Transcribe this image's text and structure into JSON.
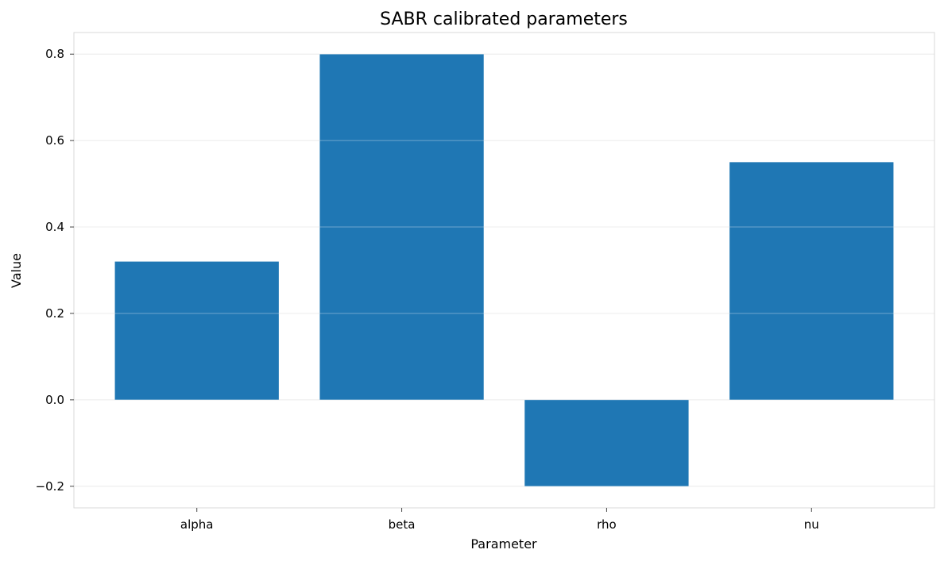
{
  "chart_data": {
    "type": "bar",
    "title": "SABR calibrated parameters",
    "xlabel": "Parameter",
    "ylabel": "Value",
    "categories": [
      "alpha",
      "beta",
      "rho",
      "nu"
    ],
    "values": [
      0.32,
      0.8,
      -0.2,
      0.55
    ],
    "ylim": [
      -0.25,
      0.85
    ],
    "yticks": [
      -0.2,
      0.0,
      0.2,
      0.4,
      0.6,
      0.8
    ],
    "ytick_labels": [
      "−0.2",
      "0.0",
      "0.2",
      "0.4",
      "0.6",
      "0.8"
    ],
    "grid": "horizontal",
    "legend": "none",
    "colors": {
      "bar": "#1f77b4",
      "grid": "#e3e3e3",
      "frame": "#d9d9d9"
    }
  }
}
